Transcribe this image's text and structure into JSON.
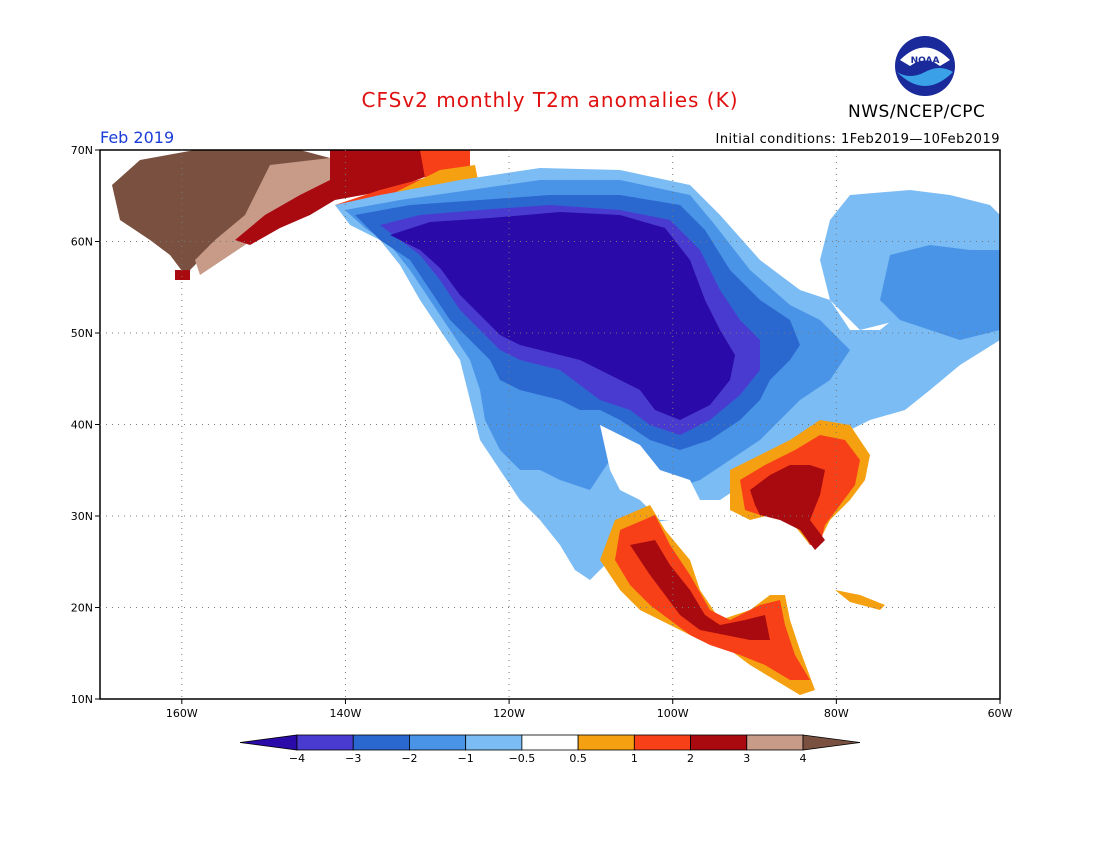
{
  "header": {
    "title": "CFSv2 monthly T2m anomalies (K)",
    "org": "NWS/NCEP/CPC",
    "month": "Feb 2019",
    "initial_conditions": "Initial conditions: 1Feb2019—10Feb2019",
    "logo_text": "NOAA"
  },
  "axes": {
    "lat_labels": [
      "70N",
      "60N",
      "50N",
      "40N",
      "30N",
      "20N",
      "10N"
    ],
    "lon_labels": [
      "160W",
      "140W",
      "120W",
      "100W",
      "80W",
      "60W"
    ],
    "lat_range": [
      10,
      70
    ],
    "lon_range": [
      -170,
      -60
    ]
  },
  "colorbar": {
    "labels": [
      "−4",
      "−3",
      "−2",
      "−1",
      "−0.5",
      "0.5",
      "1",
      "2",
      "3",
      "4"
    ],
    "colors": [
      "#2a0aa8",
      "#4a3bd0",
      "#2a68d0",
      "#4a94e8",
      "#7bbcf4",
      "#ffffff",
      "#f4a010",
      "#f84018",
      "#a80a10",
      "#c89a88",
      "#7a5040"
    ]
  }
}
